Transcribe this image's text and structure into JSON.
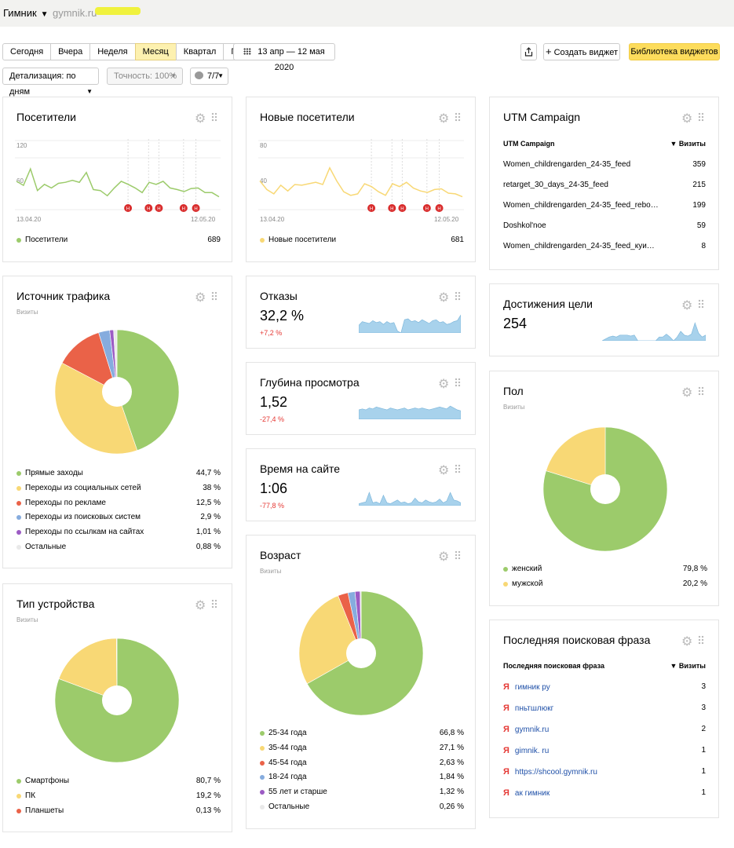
{
  "header": {
    "site": "Гимник",
    "url": "gymnik.ru"
  },
  "toolbar": {
    "periods": [
      "Сегодня",
      "Вчера",
      "Неделя",
      "Месяц",
      "Квартал",
      "Год"
    ],
    "active_period": "Месяц",
    "date_range": "13 апр — 12 мая 2020",
    "create_widget": "Создать виджет",
    "library": "Библиотека виджетов",
    "detail": "Детализация: по дням",
    "accuracy": "Точность: 100%",
    "segments": "7/7"
  },
  "colors": {
    "green": "#9ccb6b",
    "yellow": "#f8d875",
    "red": "#ea6248",
    "blue": "#86acde",
    "purple": "#9c5bc4",
    "light": "#e9e9e9",
    "spark": "#a8d2ec",
    "accent": "#fddc5c"
  },
  "cards": {
    "visitors": {
      "title": "Посетители",
      "y_top": "120",
      "y_mid": "60",
      "x_start": "13.04.20",
      "x_end": "12.05.20",
      "legend": "Посетители",
      "value": "689"
    },
    "new_visitors": {
      "title": "Новые посетители",
      "y_top": "80",
      "y_mid": "40",
      "x_start": "13.04.20",
      "x_end": "12.05.20",
      "legend": "Новые посетители",
      "value": "681"
    },
    "utm": {
      "title": "UTM Campaign",
      "col1": "UTM Campaign",
      "col2": "▼ Визиты",
      "rows": [
        {
          "k": "Women_childrengarden_24-35_feed",
          "v": "359"
        },
        {
          "k": "retarget_30_days_24-35_feed",
          "v": "215"
        },
        {
          "k": "Women_childrengarden_24-35_feed_rebo…",
          "v": "199"
        },
        {
          "k": "Doshkol'noe",
          "v": "59"
        },
        {
          "k": "Women_childrengarden_24-35_feed_куи…",
          "v": "8"
        }
      ]
    },
    "traffic": {
      "title": "Источник трафика",
      "sub": "Визиты",
      "items": [
        {
          "label": "Прямые заходы",
          "value": "44,7 %",
          "color": "#9ccb6b"
        },
        {
          "label": "Переходы из социальных сетей",
          "value": "38 %",
          "color": "#f8d875"
        },
        {
          "label": "Переходы по рекламе",
          "value": "12,5 %",
          "color": "#ea6248"
        },
        {
          "label": "Переходы из поисковых систем",
          "value": "2,9 %",
          "color": "#86acde"
        },
        {
          "label": "Переходы по ссылкам на сайтах",
          "value": "1,01 %",
          "color": "#9c5bc4"
        },
        {
          "label": "Остальные",
          "value": "0,88 %",
          "color": "#e9e9e9"
        }
      ]
    },
    "bounces": {
      "title": "Отказы",
      "value": "32,2 %",
      "delta": "+7,2 %"
    },
    "depth": {
      "title": "Глубина просмотра",
      "value": "1,52",
      "delta": "-27,4 %"
    },
    "time": {
      "title": "Время на сайте",
      "value": "1:06",
      "delta": "-77,8 %"
    },
    "goals": {
      "title": "Достижения цели",
      "value": "254"
    },
    "device": {
      "title": "Тип устройства",
      "sub": "Визиты",
      "items": [
        {
          "label": "Смартфоны",
          "value": "80,7 %",
          "color": "#9ccb6b"
        },
        {
          "label": "ПК",
          "value": "19,2 %",
          "color": "#f8d875"
        },
        {
          "label": "Планшеты",
          "value": "0,13 %",
          "color": "#ea6248"
        }
      ]
    },
    "age": {
      "title": "Возраст",
      "sub": "Визиты",
      "items": [
        {
          "label": "25-34 года",
          "value": "66,8 %",
          "color": "#9ccb6b"
        },
        {
          "label": "35-44 года",
          "value": "27,1 %",
          "color": "#f8d875"
        },
        {
          "label": "45-54 года",
          "value": "2,63 %",
          "color": "#ea6248"
        },
        {
          "label": "18-24 года",
          "value": "1,84 %",
          "color": "#86acde"
        },
        {
          "label": "55 лет и старше",
          "value": "1,32 %",
          "color": "#9c5bc4"
        },
        {
          "label": "Остальные",
          "value": "0,26 %",
          "color": "#e9e9e9"
        }
      ]
    },
    "gender": {
      "title": "Пол",
      "sub": "Визиты",
      "items": [
        {
          "label": "женский",
          "value": "79,8 %",
          "color": "#9ccb6b"
        },
        {
          "label": "мужской",
          "value": "20,2 %",
          "color": "#f8d875"
        }
      ]
    },
    "search": {
      "title": "Последняя поисковая фраза",
      "col1": "Последняя поисковая фраза",
      "col2": "▼ Визиты",
      "rows": [
        {
          "k": "гимник ру",
          "v": "3"
        },
        {
          "k": "пньтшлюкг",
          "v": "3"
        },
        {
          "k": "gymnik.ru",
          "v": "2"
        },
        {
          "k": "gimnik. ru",
          "v": "1"
        },
        {
          "k": "https://shcool.gymnik.ru",
          "v": "1"
        },
        {
          "k": "ак гимник",
          "v": "1"
        }
      ]
    }
  },
  "chart_data": [
    {
      "type": "line",
      "title": "Посетители",
      "series": [
        {
          "name": "Посетители",
          "values": [
            58,
            50,
            82,
            40,
            52,
            45,
            54,
            56,
            60,
            56,
            75,
            42,
            40,
            30,
            45,
            58,
            52,
            45,
            36,
            56,
            52,
            58,
            45,
            42,
            38,
            44,
            45,
            36,
            36,
            28
          ]
        }
      ],
      "ylim": [
        0,
        140
      ]
    },
    {
      "type": "line",
      "title": "Новые посетители",
      "series": [
        {
          "name": "Новые посетители",
          "values": [
            42,
            30,
            24,
            36,
            28,
            37,
            36,
            38,
            40,
            37,
            60,
            42,
            27,
            22,
            24,
            38,
            34,
            27,
            22,
            38,
            34,
            40,
            32,
            28,
            26,
            30,
            31,
            25,
            24,
            20
          ]
        }
      ],
      "ylim": [
        0,
        100
      ]
    },
    {
      "type": "pie",
      "title": "Источник трафика",
      "categories": [
        "Прямые заходы",
        "Переходы из социальных сетей",
        "Переходы по рекламе",
        "Переходы из поисковых систем",
        "Переходы по ссылкам на сайтах",
        "Остальные"
      ],
      "values": [
        44.7,
        38,
        12.5,
        2.9,
        1.01,
        0.88
      ]
    },
    {
      "type": "pie",
      "title": "Тип устройства",
      "categories": [
        "Смартфоны",
        "ПК",
        "Планшеты"
      ],
      "values": [
        80.7,
        19.2,
        0.13
      ]
    },
    {
      "type": "pie",
      "title": "Возраст",
      "categories": [
        "25-34 года",
        "35-44 года",
        "45-54 года",
        "18-24 года",
        "55 лет и старше",
        "Остальные"
      ],
      "values": [
        66.8,
        27.1,
        2.63,
        1.84,
        1.32,
        0.26
      ]
    },
    {
      "type": "pie",
      "title": "Пол",
      "categories": [
        "женский",
        "мужской"
      ],
      "values": [
        79.8,
        20.2
      ]
    },
    {
      "type": "area",
      "title": "Отказы",
      "values": [
        0.4,
        0.6,
        0.55,
        0.5,
        0.65,
        0.55,
        0.6,
        0.45,
        0.6,
        0.5,
        0.55,
        0.1,
        0.0,
        0.7,
        0.75,
        0.6,
        0.65,
        0.55,
        0.7,
        0.6,
        0.5,
        0.65,
        0.7,
        0.55,
        0.6,
        0.45,
        0.5,
        0.6,
        0.65,
        0.95
      ]
    },
    {
      "type": "area",
      "title": "Глубина просмотра",
      "values": [
        0.5,
        0.55,
        0.5,
        0.6,
        0.55,
        0.65,
        0.6,
        0.55,
        0.5,
        0.6,
        0.55,
        0.5,
        0.55,
        0.6,
        0.5,
        0.55,
        0.6,
        0.55,
        0.6,
        0.55,
        0.5,
        0.55,
        0.6,
        0.65,
        0.6,
        0.55,
        0.7,
        0.6,
        0.5,
        0.45
      ]
    },
    {
      "type": "area",
      "title": "Время на сайте",
      "values": [
        0.1,
        0.15,
        0.2,
        0.7,
        0.15,
        0.2,
        0.1,
        0.55,
        0.15,
        0.1,
        0.2,
        0.3,
        0.15,
        0.2,
        0.1,
        0.15,
        0.4,
        0.2,
        0.15,
        0.3,
        0.2,
        0.15,
        0.2,
        0.35,
        0.15,
        0.25,
        0.7,
        0.3,
        0.25,
        0.15
      ]
    },
    {
      "type": "area",
      "title": "Достижения цели",
      "values": [
        0.0,
        0.1,
        0.2,
        0.25,
        0.2,
        0.3,
        0.3,
        0.3,
        0.25,
        0.3,
        0.0,
        0.0,
        0.0,
        0.0,
        0.0,
        0.0,
        0.2,
        0.2,
        0.35,
        0.2,
        0.0,
        0.2,
        0.5,
        0.3,
        0.25,
        0.35,
        0.95,
        0.4,
        0.2,
        0.3
      ]
    }
  ]
}
